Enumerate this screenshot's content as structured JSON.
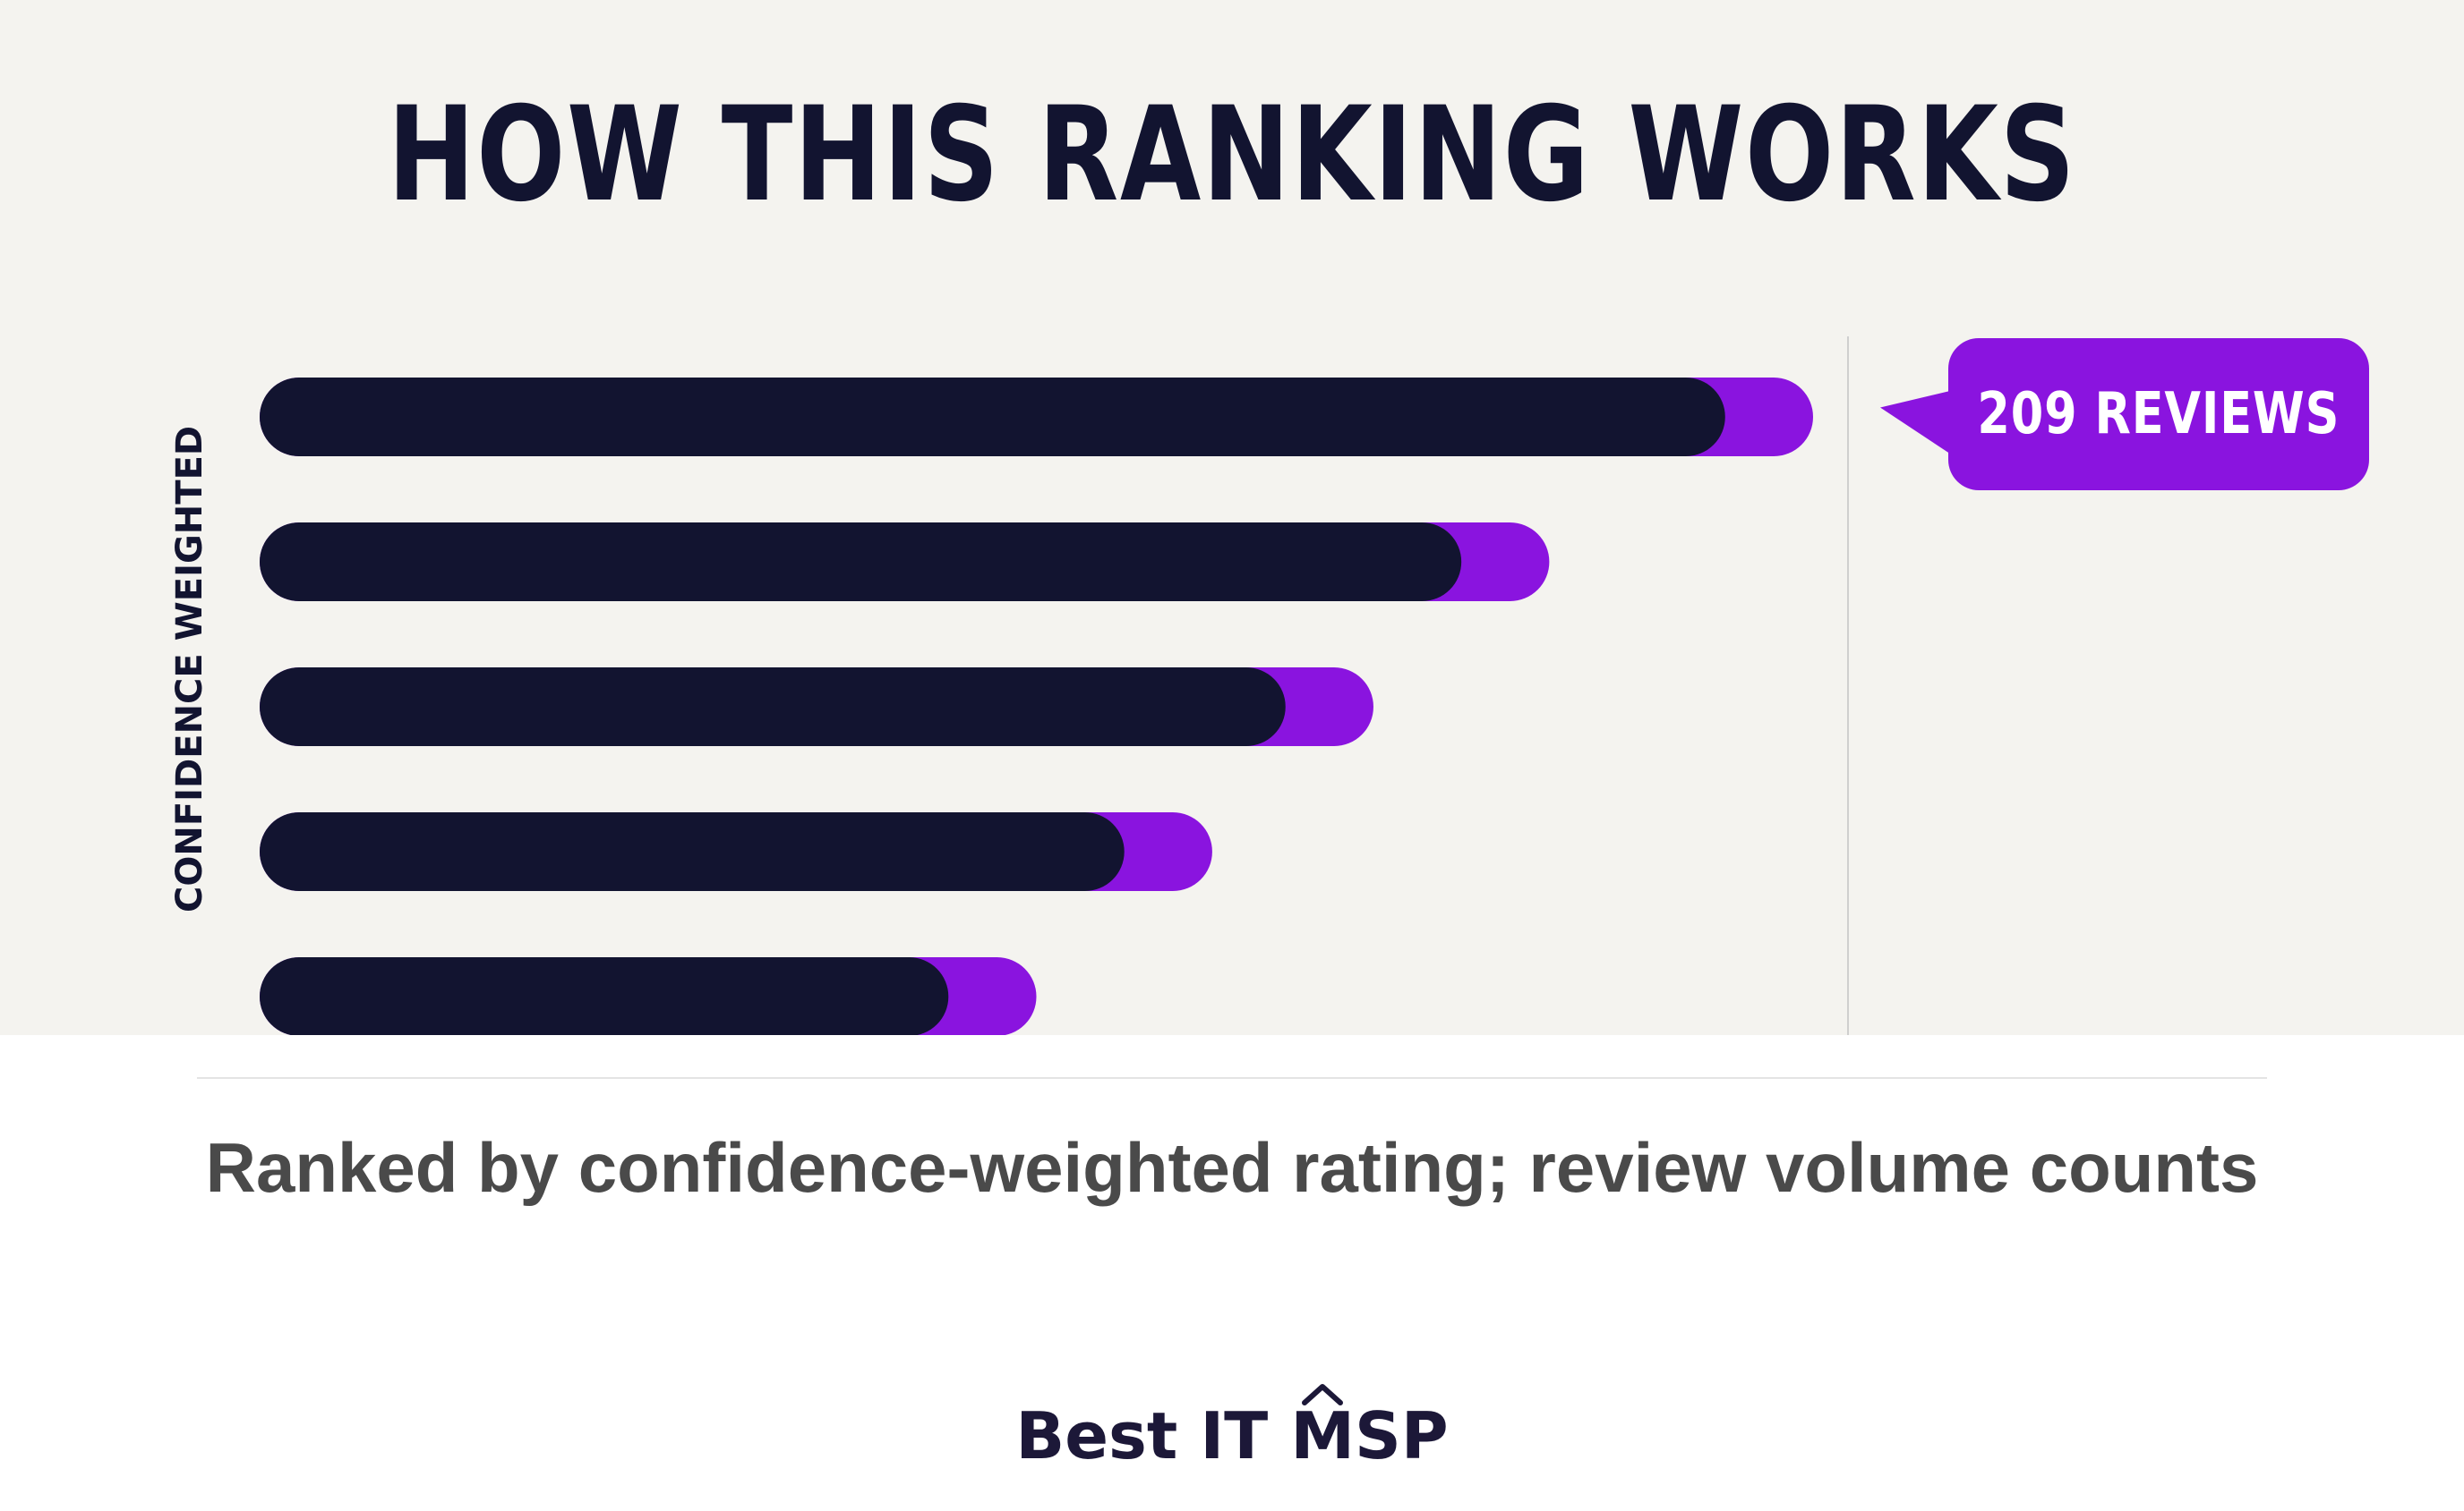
{
  "headline": "HOW THIS RANKING WORKS",
  "colors": {
    "background": "#f4f3ef",
    "bar": "#121430",
    "accent": "#8a14df",
    "text": "#121430",
    "caption": "#4a4a4a"
  },
  "chart_data": {
    "type": "bar",
    "orientation": "horizontal",
    "ylabel": "CONFIDENCE WEIGHTED",
    "xlabel": "",
    "grid": false,
    "legend": "none",
    "series": [
      {
        "values": [
          100,
          82,
          70,
          59,
          47
        ]
      },
      {
        "values": [
          6,
          6,
          6,
          6,
          6
        ]
      }
    ],
    "reference_line": true,
    "callout": "209 REVIEWS"
  },
  "caption": "Ranked by confidence-weighted rating; review volume counts",
  "brand": {
    "text": "Best IT MSP",
    "icon": "caret-up-icon"
  }
}
